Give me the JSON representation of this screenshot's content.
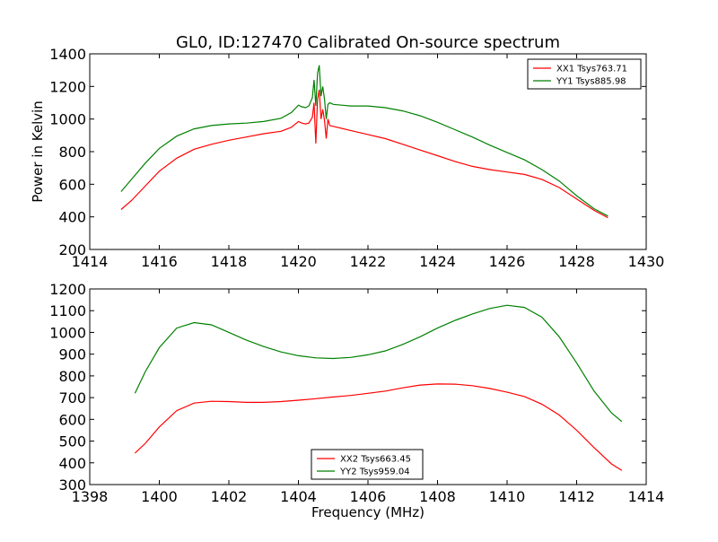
{
  "figure": {
    "title": "GL0, ID:127470 Calibrated On-source spectrum",
    "ylabel": "Power in Kelvin",
    "xlabel": "Frequency (MHz)"
  },
  "chart_data": [
    {
      "type": "line",
      "title": "GL0, ID:127470 Calibrated On-source spectrum",
      "xlabel": "",
      "ylabel": "Power in Kelvin",
      "xlim": [
        1414,
        1430
      ],
      "ylim": [
        200,
        1400
      ],
      "xticks": [
        1414,
        1416,
        1418,
        1420,
        1422,
        1424,
        1426,
        1428,
        1430
      ],
      "yticks": [
        200,
        400,
        600,
        800,
        1000,
        1200,
        1400
      ],
      "grid": false,
      "legend": "top-right",
      "series": [
        {
          "name": "XX1 Tsys763.71",
          "color": "#ff0000",
          "x": [
            1414.9,
            1415.2,
            1415.6,
            1416.0,
            1416.5,
            1417.0,
            1417.5,
            1418.0,
            1418.5,
            1419.0,
            1419.5,
            1419.8,
            1420.0,
            1420.1,
            1420.2,
            1420.3,
            1420.4,
            1420.45,
            1420.5,
            1420.55,
            1420.6,
            1420.65,
            1420.7,
            1420.75,
            1420.8,
            1420.85,
            1420.9,
            1421.0,
            1421.5,
            1422.0,
            1422.5,
            1423.0,
            1423.5,
            1424.0,
            1424.5,
            1425.0,
            1425.5,
            1426.0,
            1426.5,
            1427.0,
            1427.5,
            1428.0,
            1428.5,
            1428.9
          ],
          "values": [
            445,
            500,
            590,
            680,
            760,
            815,
            845,
            870,
            890,
            910,
            925,
            950,
            985,
            975,
            970,
            975,
            1010,
            1100,
            850,
            1120,
            1180,
            1000,
            1060,
            990,
            880,
            1000,
            960,
            955,
            930,
            905,
            880,
            845,
            810,
            775,
            740,
            710,
            690,
            675,
            660,
            630,
            580,
            510,
            440,
            395
          ]
        },
        {
          "name": "YY1 Tsys885.98",
          "color": "#008000",
          "x": [
            1414.9,
            1415.2,
            1415.6,
            1416.0,
            1416.5,
            1417.0,
            1417.5,
            1418.0,
            1418.5,
            1419.0,
            1419.5,
            1419.8,
            1420.0,
            1420.1,
            1420.2,
            1420.3,
            1420.4,
            1420.45,
            1420.5,
            1420.55,
            1420.6,
            1420.65,
            1420.7,
            1420.75,
            1420.8,
            1420.85,
            1420.9,
            1421.0,
            1421.5,
            1422.0,
            1422.5,
            1423.0,
            1423.5,
            1424.0,
            1424.5,
            1425.0,
            1425.5,
            1426.0,
            1426.5,
            1427.0,
            1427.5,
            1428.0,
            1428.5,
            1428.9
          ],
          "values": [
            555,
            630,
            730,
            820,
            895,
            940,
            960,
            970,
            975,
            985,
            1005,
            1040,
            1085,
            1075,
            1070,
            1080,
            1130,
            1240,
            1080,
            1280,
            1330,
            1140,
            1200,
            1120,
            1000,
            1090,
            1100,
            1090,
            1080,
            1080,
            1070,
            1050,
            1020,
            980,
            935,
            890,
            840,
            795,
            750,
            690,
            620,
            530,
            450,
            405
          ]
        }
      ]
    },
    {
      "type": "line",
      "title": "",
      "xlabel": "Frequency (MHz)",
      "ylabel": "",
      "xlim": [
        1398,
        1414
      ],
      "ylim": [
        300,
        1200
      ],
      "xticks": [
        1398,
        1400,
        1402,
        1404,
        1406,
        1408,
        1410,
        1412,
        1414
      ],
      "yticks": [
        300,
        400,
        500,
        600,
        700,
        800,
        900,
        1000,
        1100,
        1200
      ],
      "grid": false,
      "legend": "bottom-center",
      "series": [
        {
          "name": "XX2 Tsys663.45",
          "color": "#ff0000",
          "x": [
            1399.3,
            1399.6,
            1400.0,
            1400.5,
            1401.0,
            1401.5,
            1402.0,
            1402.5,
            1403.0,
            1403.5,
            1404.0,
            1404.5,
            1405.0,
            1405.5,
            1406.0,
            1406.5,
            1407.0,
            1407.5,
            1408.0,
            1408.5,
            1409.0,
            1409.5,
            1410.0,
            1410.5,
            1411.0,
            1411.5,
            1412.0,
            1412.5,
            1413.0,
            1413.3
          ],
          "values": [
            445,
            490,
            565,
            640,
            675,
            683,
            682,
            678,
            678,
            682,
            688,
            695,
            703,
            710,
            720,
            730,
            745,
            758,
            763,
            762,
            755,
            742,
            725,
            705,
            670,
            620,
            550,
            470,
            395,
            365
          ]
        },
        {
          "name": "YY2 Tsys959.04",
          "color": "#008000",
          "x": [
            1399.3,
            1399.6,
            1400.0,
            1400.5,
            1401.0,
            1401.5,
            1402.0,
            1402.5,
            1403.0,
            1403.5,
            1404.0,
            1404.5,
            1405.0,
            1405.5,
            1406.0,
            1406.5,
            1407.0,
            1407.5,
            1408.0,
            1408.5,
            1409.0,
            1409.5,
            1410.0,
            1410.5,
            1411.0,
            1411.5,
            1412.0,
            1412.5,
            1413.0,
            1413.3
          ],
          "values": [
            720,
            820,
            930,
            1020,
            1045,
            1035,
            1000,
            965,
            935,
            910,
            893,
            883,
            880,
            885,
            897,
            915,
            945,
            980,
            1020,
            1055,
            1085,
            1110,
            1125,
            1115,
            1070,
            980,
            860,
            730,
            630,
            590
          ]
        }
      ]
    }
  ]
}
